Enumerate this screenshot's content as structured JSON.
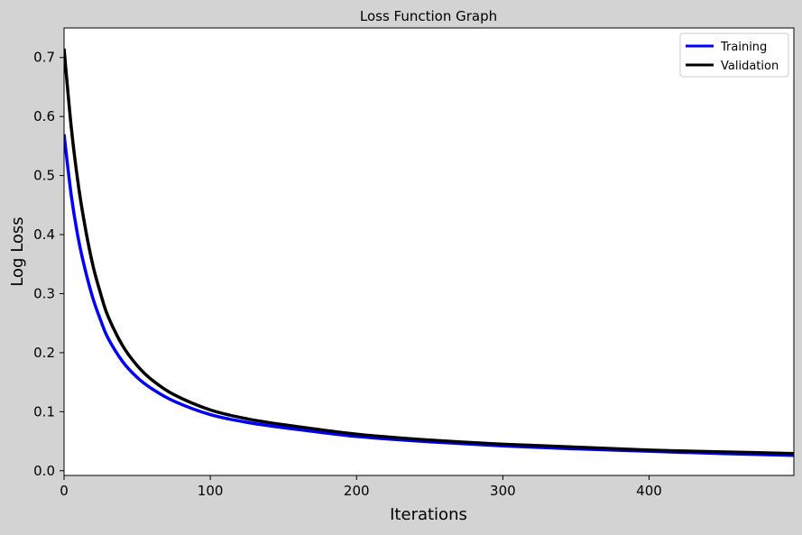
{
  "colors": {
    "figure_bg": "#d3d3d3",
    "plot_bg": "#ffffff",
    "training": "#0000ff",
    "validation": "#000000"
  },
  "chart_data": {
    "type": "line",
    "title": "Loss Function Graph",
    "xlabel": "Iterations",
    "ylabel": "Log Loss",
    "xlim": [
      0,
      499
    ],
    "ylim": [
      -0.008,
      0.75
    ],
    "xticks": [
      0,
      100,
      200,
      300,
      400
    ],
    "xtick_labels": [
      "0",
      "100",
      "200",
      "300",
      "400"
    ],
    "yticks": [
      0.0,
      0.1,
      0.2,
      0.3,
      0.4,
      0.5,
      0.6,
      0.7
    ],
    "ytick_labels": [
      "0.0",
      "0.1",
      "0.2",
      "0.3",
      "0.4",
      "0.5",
      "0.6",
      "0.7"
    ],
    "grid": false,
    "legend_position": "top-right",
    "x": [
      0,
      5,
      10,
      15,
      20,
      25,
      30,
      40,
      50,
      60,
      75,
      100,
      125,
      150,
      200,
      250,
      300,
      350,
      400,
      450,
      499
    ],
    "series": [
      {
        "name": "Training",
        "color": "#0000ff",
        "values": [
          0.57,
          0.465,
          0.39,
          0.335,
          0.29,
          0.255,
          0.225,
          0.185,
          0.158,
          0.139,
          0.118,
          0.095,
          0.082,
          0.073,
          0.058,
          0.049,
          0.042,
          0.037,
          0.033,
          0.029,
          0.026
        ]
      },
      {
        "name": "Validation",
        "color": "#000000",
        "values": [
          0.715,
          0.58,
          0.48,
          0.405,
          0.345,
          0.3,
          0.262,
          0.212,
          0.178,
          0.154,
          0.129,
          0.103,
          0.088,
          0.078,
          0.062,
          0.052,
          0.045,
          0.04,
          0.035,
          0.032,
          0.029
        ]
      }
    ]
  }
}
